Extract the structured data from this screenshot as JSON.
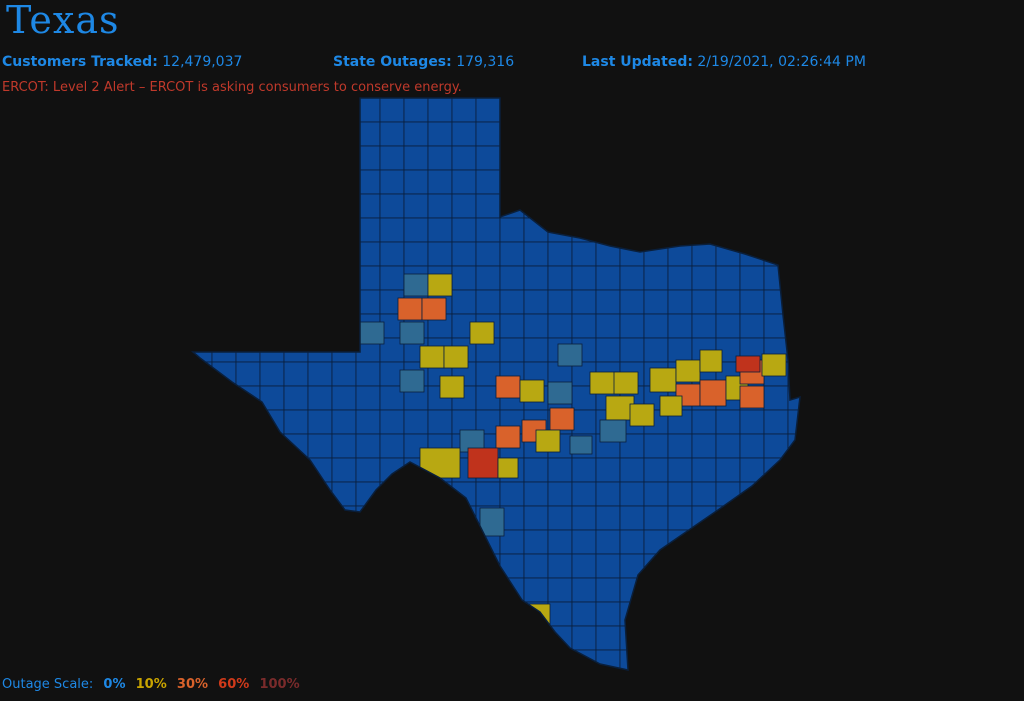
{
  "header": {
    "title": "Texas",
    "customers_label": "Customers Tracked:",
    "customers_value": "12,479,037",
    "outages_label": "State Outages:",
    "outages_value": "179,316",
    "updated_label": "Last Updated:",
    "updated_value": "2/19/2021, 02:26:44 PM"
  },
  "alert": "ERCOT: Level 2 Alert – ERCOT is asking consumers to conserve energy.",
  "scale": {
    "label": "Outage Scale:",
    "steps": [
      {
        "text": "0%",
        "color": "#1e88e5"
      },
      {
        "text": "10%",
        "color": "#c9a400"
      },
      {
        "text": "30%",
        "color": "#d9622b"
      },
      {
        "text": "60%",
        "color": "#d13a1a"
      },
      {
        "text": "100%",
        "color": "#7a2b2b"
      }
    ]
  },
  "colors": {
    "base": "#0d4a9a",
    "light": "#2f6a92",
    "yellow": "#b8a812",
    "orange": "#d9622b",
    "red": "#c0331c",
    "border": "#0a1f3b"
  }
}
